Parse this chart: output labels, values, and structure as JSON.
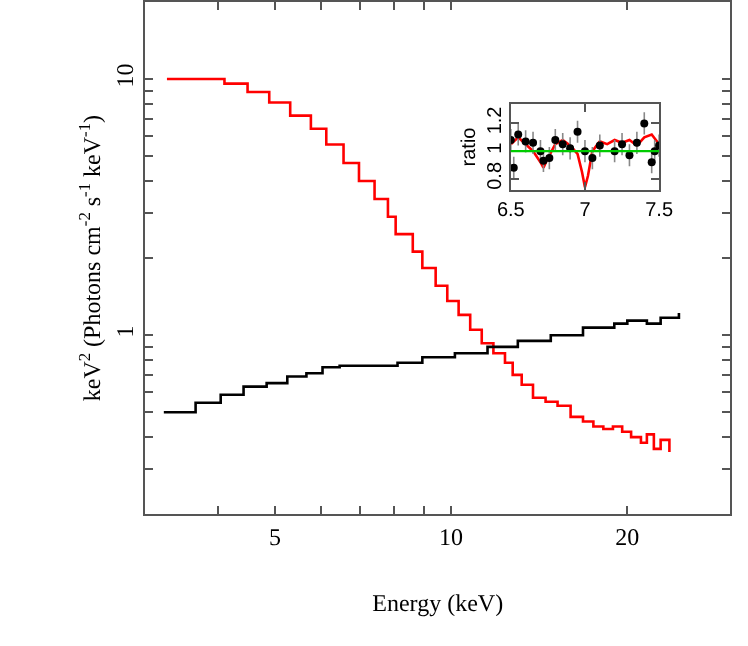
{
  "chart_data": [
    {
      "type": "step",
      "xlabel": "Energy (keV)",
      "ylabel": "keV$^{2}$ (Photons cm$^{-2}$ s$^{-1}$ keV$^{-1}$)",
      "log": "xy",
      "xlim": [
        3,
        30
      ],
      "xticks": [
        {
          "value": 4,
          "label": null
        },
        5,
        {
          "value": 6,
          "label": null
        },
        {
          "value": 7,
          "label": null
        },
        {
          "value": 8,
          "label": null
        },
        {
          "value": 9,
          "label": null
        },
        10,
        20
      ],
      "ylim": [
        0.2,
        20
      ],
      "yticks": [
        {
          "value": 0.3,
          "label": null
        },
        {
          "value": 0.4,
          "label": null
        },
        {
          "value": 0.5,
          "label": null
        },
        {
          "value": 0.6,
          "label": null
        },
        {
          "value": 0.7,
          "label": null
        },
        {
          "value": 0.8,
          "label": null
        },
        {
          "value": 0.9,
          "label": null
        },
        1,
        {
          "value": 2,
          "label": null
        },
        {
          "value": 3,
          "label": null
        },
        {
          "value": 4,
          "label": null
        },
        {
          "value": 5,
          "label": null
        },
        {
          "value": 6,
          "label": null
        },
        {
          "value": 7,
          "label": null
        },
        {
          "value": 8,
          "label": null
        },
        {
          "value": 9,
          "label": null
        },
        10
      ],
      "series": [
        {
          "color": "#ff0000",
          "x": [
            3.27,
            4.1,
            4.49,
            4.89,
            5.31,
            5.76,
            6.12,
            6.55,
            6.96,
            7.4,
            7.8,
            8.04,
            8.6,
            8.93,
            9.41,
            9.85,
            10.3,
            10.78,
            11.28,
            11.81,
            12.36,
            12.74,
            13.2,
            13.8,
            14.5,
            15.2,
            16.0,
            16.8,
            17.5,
            18.2,
            18.9,
            19.6,
            20.3,
            21.1,
            21.6,
            22.2,
            22.8,
            23.6
          ],
          "values": [
            10,
            9.6,
            8.9,
            8.1,
            7.2,
            6.4,
            5.55,
            4.7,
            4.0,
            3.4,
            2.9,
            2.48,
            2.12,
            1.83,
            1.56,
            1.36,
            1.2,
            1.05,
            0.93,
            0.85,
            0.78,
            0.7,
            0.64,
            0.57,
            0.55,
            0.53,
            0.48,
            0.46,
            0.44,
            0.43,
            0.44,
            0.42,
            0.4,
            0.38,
            0.41,
            0.36,
            0.39,
            0.35
          ]
        },
        {
          "color": "#000000",
          "x": [
            3.23,
            3.66,
            4.04,
            4.42,
            4.84,
            5.25,
            5.66,
            6.03,
            6.45,
            7.34,
            8.1,
            8.93,
            10.15,
            11.54,
            13.0,
            14.8,
            16.8,
            19.0,
            20.0,
            21.6,
            22.8,
            24.5
          ],
          "values": [
            0.5,
            0.545,
            0.585,
            0.63,
            0.65,
            0.69,
            0.71,
            0.75,
            0.76,
            0.76,
            0.78,
            0.82,
            0.85,
            0.9,
            0.95,
            1.0,
            1.07,
            1.11,
            1.14,
            1.11,
            1.17,
            1.22
          ]
        }
      ]
    },
    {
      "type": "line",
      "ylabel": "ratio",
      "xlim": [
        6.5,
        7.5
      ],
      "xticks": [
        6.5,
        7,
        7.5
      ],
      "ylim": [
        0.72,
        1.34
      ],
      "yticks": [
        0.8,
        1,
        1.2
      ],
      "ref_lines": [
        {
          "axis": "y",
          "value": 1,
          "color": "#00cc00"
        }
      ],
      "series": [
        {
          "color": "#ff0000",
          "x": [
            6.5,
            6.55,
            6.6,
            6.65,
            6.7,
            6.72,
            6.75,
            6.8,
            6.85,
            6.9,
            6.95,
            6.98,
            7.0,
            7.02,
            7.05,
            7.1,
            7.15,
            7.2,
            7.25,
            7.3,
            7.35,
            7.4,
            7.45,
            7.5
          ],
          "values": [
            1.05,
            1.1,
            1.05,
            1.0,
            0.92,
            0.88,
            0.95,
            1.05,
            1.08,
            1.04,
            0.98,
            0.85,
            0.74,
            0.82,
            1.0,
            1.07,
            1.05,
            1.08,
            1.06,
            1.08,
            1.04,
            1.1,
            1.12,
            1.05
          ]
        },
        {
          "color": "#000000",
          "type": "scatter",
          "marker": "circle",
          "x": [
            6.5,
            6.52,
            6.55,
            6.6,
            6.65,
            6.7,
            6.72,
            6.76,
            6.8,
            6.85,
            6.9,
            6.95,
            7.0,
            7.05,
            7.1,
            7.2,
            7.25,
            7.3,
            7.35,
            7.4,
            7.45,
            7.47,
            7.5
          ],
          "values": [
            1.08,
            0.88,
            1.12,
            1.07,
            1.06,
            1.0,
            0.93,
            0.95,
            1.08,
            1.05,
            1.02,
            1.14,
            1.0,
            0.95,
            1.04,
            1.0,
            1.05,
            0.97,
            1.06,
            1.2,
            0.92,
            1.0,
            1.04
          ],
          "errors": [
            0.08,
            0.08,
            0.08,
            0.08,
            0.08,
            0.08,
            0.08,
            0.08,
            0.08,
            0.08,
            0.08,
            0.08,
            0.08,
            0.08,
            0.08,
            0.08,
            0.08,
            0.08,
            0.08,
            0.08,
            0.08,
            0.08,
            0.08
          ]
        }
      ]
    }
  ]
}
